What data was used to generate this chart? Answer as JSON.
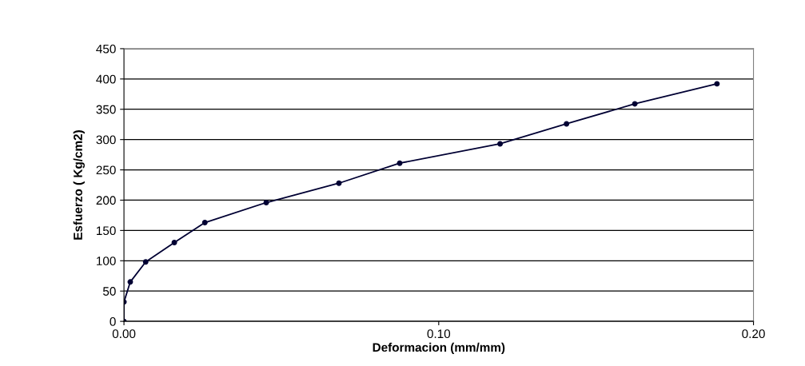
{
  "chart_data": {
    "type": "line",
    "xlabel": "Deformacion (mm/mm)",
    "ylabel": "Esfuerzo ( Kg/cm2)",
    "x": [
      0,
      0,
      0.002,
      0.0069,
      0.016,
      0.0257,
      0.0452,
      0.0683,
      0.0876,
      0.1195,
      0.1406,
      0.1623,
      0.1884
    ],
    "series": [
      {
        "color": "#000033",
        "values": [
          0,
          32,
          65,
          98,
          130,
          163,
          196,
          228,
          261,
          293,
          326,
          359,
          392
        ]
      }
    ],
    "xlim": [
      0,
      0.2
    ],
    "xticks": [
      {
        "value": 0,
        "label": "0.00"
      },
      {
        "value": 0.1,
        "label": "0.10"
      },
      {
        "value": 0.2,
        "label": "0.20"
      }
    ],
    "ylim": [
      0,
      450
    ],
    "yticks": [
      0,
      50,
      100,
      150,
      200,
      250,
      300,
      350,
      400,
      450
    ],
    "grid": "y",
    "marker": "circle",
    "line_style": "solid"
  }
}
